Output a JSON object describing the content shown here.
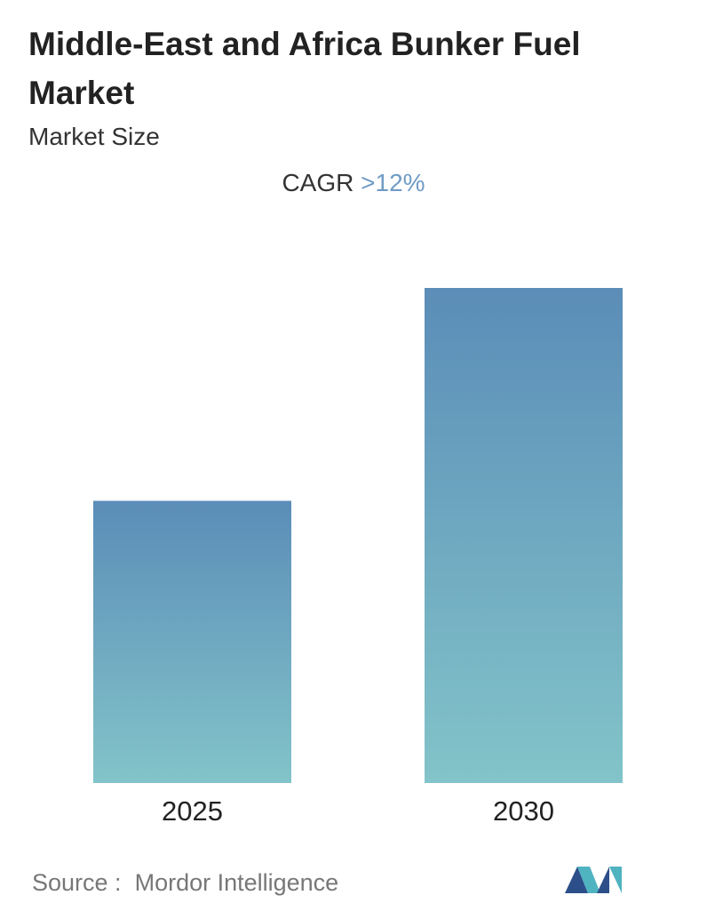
{
  "chart_data": {
    "type": "bar",
    "title": "Middle-East and Africa Bunker Fuel Market",
    "subtitle": "Market Size",
    "cagr": {
      "label": "CAGR",
      "value": ">12%"
    },
    "categories": [
      "2025",
      "2030"
    ],
    "values": [
      57,
      100
    ],
    "color_top": "#5b8db8",
    "color_bottom": "#82c4c9",
    "source": {
      "label": "Source :",
      "value": "Mordor Intelligence"
    }
  }
}
